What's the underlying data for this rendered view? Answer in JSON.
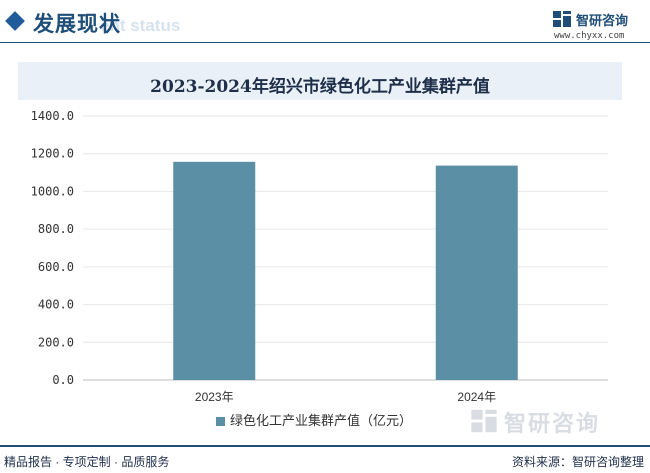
{
  "header": {
    "section_title": "发展现状",
    "section_subtitle": "ent status",
    "logo_name": "智研咨询",
    "logo_url": "www.chyxx.com"
  },
  "colors": {
    "brand": "#1f4e79",
    "bar": "#5b8fa6",
    "title_bg": "#e9f0f7"
  },
  "chart_data": {
    "type": "bar",
    "title": "2023-2024年绍兴市绿色化工产业集群产值",
    "categories": [
      "2023年",
      "2024年"
    ],
    "series": [
      {
        "name": "绿色化工产业集群产值（亿元）",
        "values": [
          1157,
          1137
        ]
      }
    ],
    "ylim": [
      0,
      1400
    ],
    "yticks": [
      "0.0",
      "200.0",
      "400.0",
      "600.0",
      "800.0",
      "1000.0",
      "1200.0",
      "1400.0"
    ],
    "grid": true,
    "legend_position": "bottom"
  },
  "watermark": {
    "logo_text": "智研咨询"
  },
  "footer": {
    "left": "精品报告 · 专项定制 · 品质服务",
    "right": "资料来源：智研咨询整理"
  }
}
